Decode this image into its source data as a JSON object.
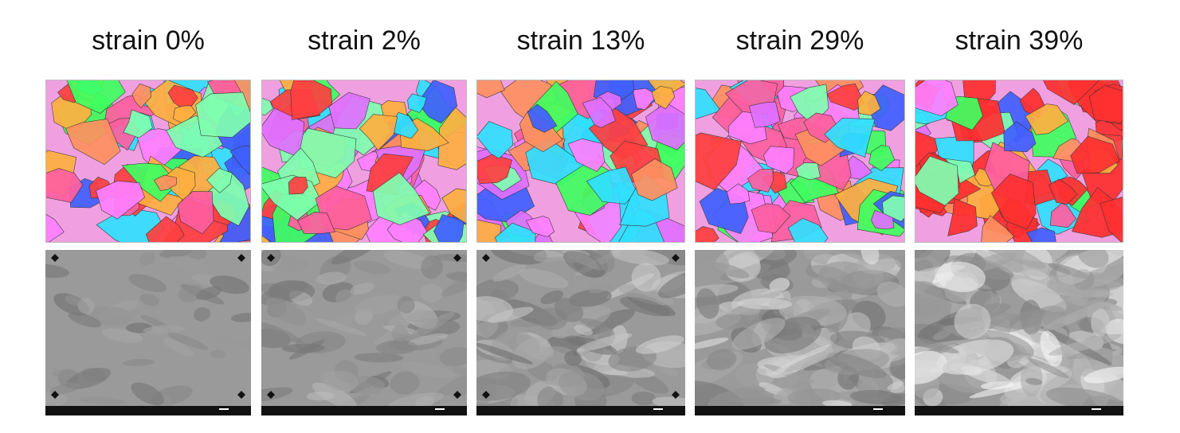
{
  "panels": [
    {
      "label": "strain 0%"
    },
    {
      "label": "strain 2%"
    },
    {
      "label": "strain 13%"
    },
    {
      "label": "strain 29%"
    },
    {
      "label": "strain 39%"
    }
  ]
}
